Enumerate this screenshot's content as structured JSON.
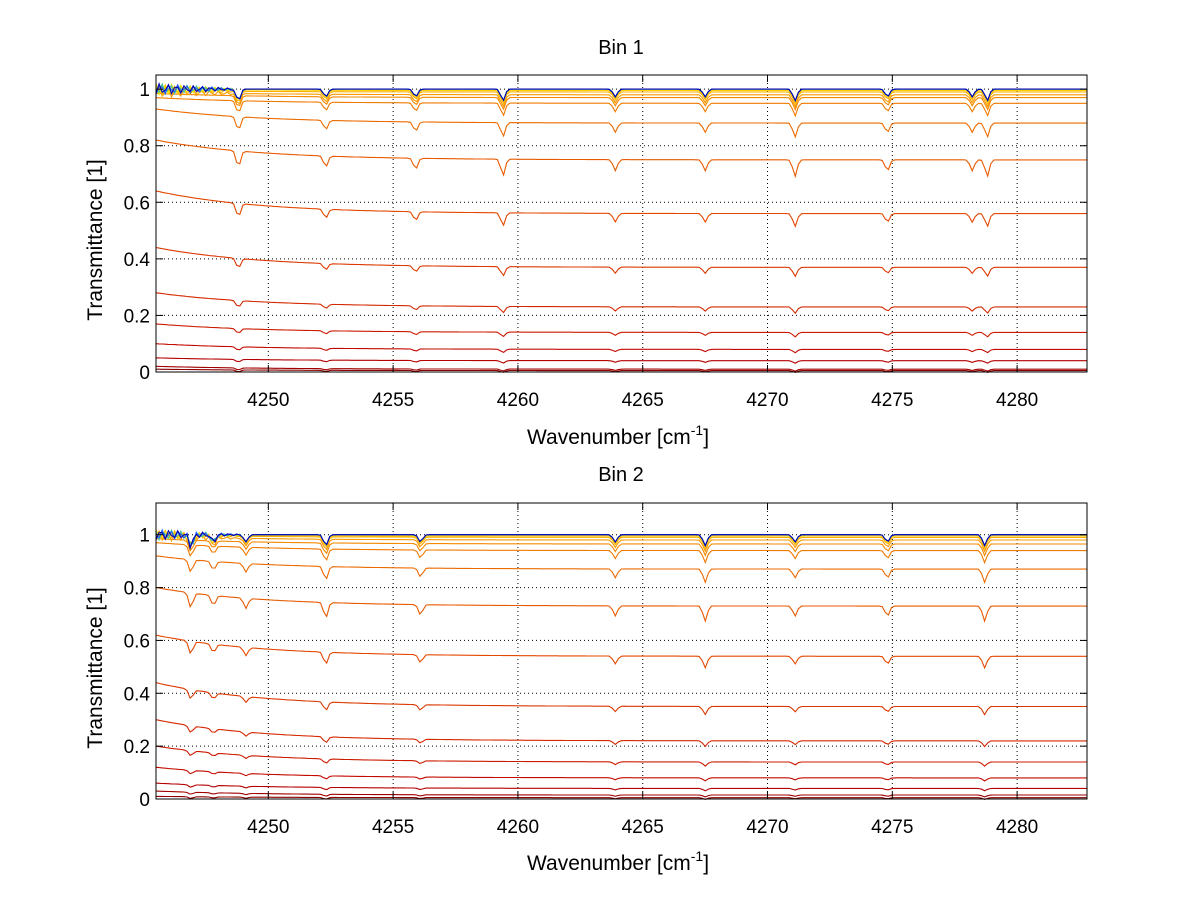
{
  "chart_data": [
    {
      "type": "line",
      "title": "Bin 1",
      "xlabel": "Wavenumber [cm",
      "xlabel_sup": "-1",
      "xlabel_end": "]",
      "ylabel": "Transmittance [1]",
      "xlim": [
        4245.5,
        4282.8
      ],
      "ylim": [
        0,
        1.05
      ],
      "xticks": [
        "4250",
        "4255",
        "4260",
        "4265",
        "4270",
        "4275",
        "4280"
      ],
      "yticks": [
        "0",
        "0.2",
        "0.4",
        "0.6",
        "0.8",
        "1"
      ],
      "grid": true,
      "absorption_lines_x": [
        4248.8,
        4252.3,
        4255.9,
        4259.4,
        4263.9,
        4267.5,
        4271.1,
        4274.8,
        4278.2,
        4278.8
      ],
      "series": [
        {
          "color": "#8b0000",
          "start": 0.01,
          "end": 0.005
        },
        {
          "color": "#a00000",
          "start": 0.02,
          "end": 0.01
        },
        {
          "color": "#b50000",
          "start": 0.05,
          "end": 0.04
        },
        {
          "color": "#c30a00",
          "start": 0.1,
          "end": 0.08
        },
        {
          "color": "#cc1a00",
          "start": 0.17,
          "end": 0.14
        },
        {
          "color": "#d42800",
          "start": 0.28,
          "end": 0.23
        },
        {
          "color": "#dc3800",
          "start": 0.44,
          "end": 0.37
        },
        {
          "color": "#e44800",
          "start": 0.64,
          "end": 0.56
        },
        {
          "color": "#e85a00",
          "start": 0.82,
          "end": 0.75
        },
        {
          "color": "#ec6a00",
          "start": 0.93,
          "end": 0.88
        },
        {
          "color": "#f07a00",
          "start": 0.97,
          "end": 0.95
        },
        {
          "color": "#f48a00",
          "start": 0.985,
          "end": 0.97
        },
        {
          "color": "#f89a00",
          "start": 0.99,
          "end": 0.98
        },
        {
          "color": "#fbb000",
          "start": 0.995,
          "end": 0.99
        },
        {
          "color": "#ffd200",
          "start": 1.0,
          "end": 0.995
        },
        {
          "color": "#e6e600",
          "start": 1.0,
          "end": 1.0
        },
        {
          "color": "#40c0a0",
          "start": 1.0,
          "end": 1.0
        },
        {
          "color": "#1e60ff",
          "start": 1.0,
          "end": 1.0
        },
        {
          "color": "#0000b0",
          "start": 1.0,
          "end": 1.0
        }
      ]
    },
    {
      "type": "line",
      "title": "Bin 2",
      "xlabel": "Wavenumber [cm",
      "xlabel_sup": "-1",
      "xlabel_end": "]",
      "ylabel": "Transmittance [1]",
      "xlim": [
        4245.5,
        4282.8
      ],
      "ylim": [
        0,
        1.12
      ],
      "xticks": [
        "4250",
        "4255",
        "4260",
        "4265",
        "4270",
        "4275",
        "4280"
      ],
      "yticks": [
        "0",
        "0.2",
        "0.4",
        "0.6",
        "0.8",
        "1"
      ],
      "grid": true,
      "absorption_lines_x": [
        4246.9,
        4247.8,
        4249.1,
        4252.3,
        4256.1,
        4263.9,
        4267.5,
        4271.1,
        4274.8,
        4278.7
      ],
      "series": [
        {
          "color": "#8b0000",
          "start": 0.01,
          "end": 0.005
        },
        {
          "color": "#a00000",
          "start": 0.03,
          "end": 0.015
        },
        {
          "color": "#b50000",
          "start": 0.06,
          "end": 0.04
        },
        {
          "color": "#c30a00",
          "start": 0.12,
          "end": 0.08
        },
        {
          "color": "#cc1a00",
          "start": 0.2,
          "end": 0.14
        },
        {
          "color": "#d42800",
          "start": 0.3,
          "end": 0.22
        },
        {
          "color": "#dc3800",
          "start": 0.44,
          "end": 0.35
        },
        {
          "color": "#e44800",
          "start": 0.62,
          "end": 0.54
        },
        {
          "color": "#e85a00",
          "start": 0.8,
          "end": 0.73
        },
        {
          "color": "#ec6a00",
          "start": 0.92,
          "end": 0.87
        },
        {
          "color": "#f07a00",
          "start": 0.97,
          "end": 0.94
        },
        {
          "color": "#f48a00",
          "start": 0.985,
          "end": 0.965
        },
        {
          "color": "#f89a00",
          "start": 0.995,
          "end": 0.98
        },
        {
          "color": "#fbb000",
          "start": 1.0,
          "end": 0.99
        },
        {
          "color": "#ffd200",
          "start": 1.0,
          "end": 0.995
        },
        {
          "color": "#40c0a0",
          "start": 1.0,
          "end": 1.0
        },
        {
          "color": "#1e60ff",
          "start": 1.0,
          "end": 1.0
        },
        {
          "color": "#0000b0",
          "start": 1.0,
          "end": 1.0
        }
      ]
    }
  ]
}
